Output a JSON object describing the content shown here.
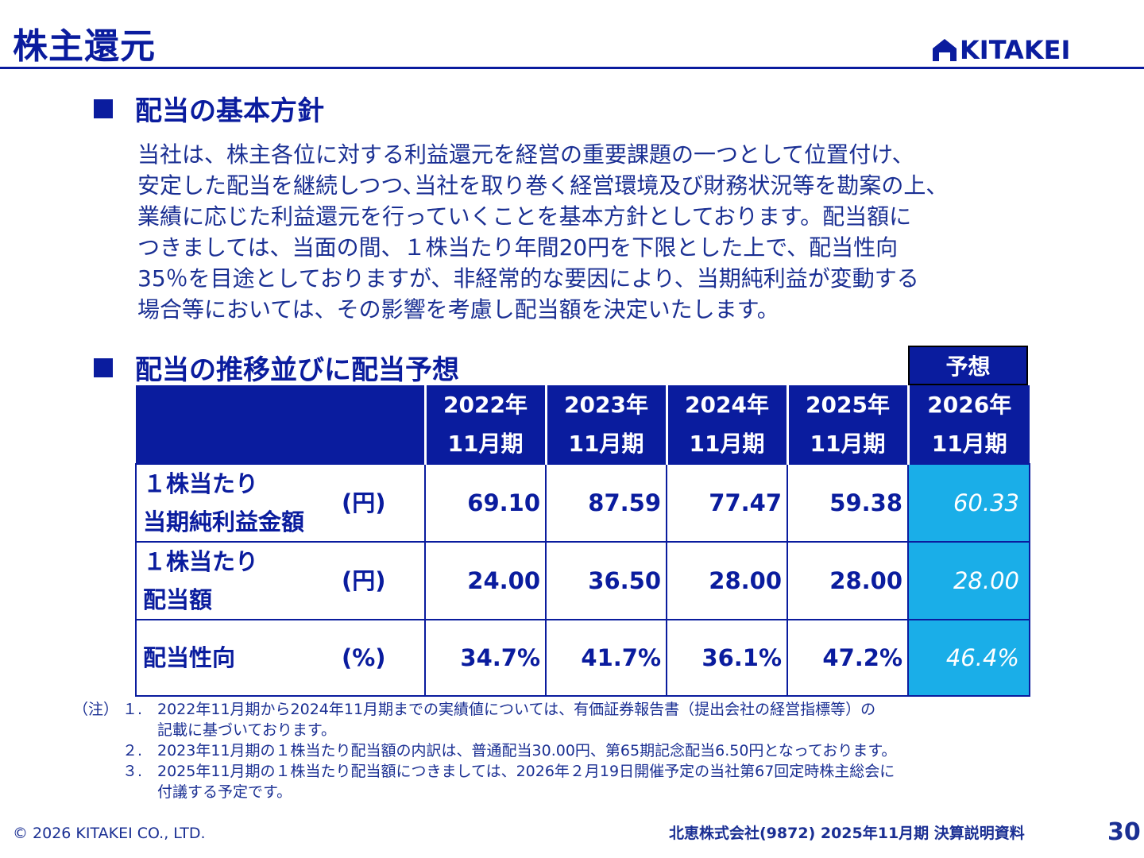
{
  "header": {
    "title": "株主還元",
    "logo_text": "KITAKEI"
  },
  "section1": {
    "heading": "配当の基本方針",
    "lines": [
      "当社は、株主各位に対する利益還元を経営の重要課題の一つとして位置付け、",
      "安定した配当を継続しつつ､当社を取り巻く経営環境及び財務状況等を勘案の上、",
      "業績に応じた利益還元を行っていくことを基本方針としております。配当額に",
      "つきましては、当面の間、１株当たり年間20円を下限とした上で、配当性向",
      "35％を目途としておりますが、非経常的な要因により、当期純利益が変動する",
      "場合等においては、その影響を考慮し配当額を決定いたします。"
    ]
  },
  "section2": {
    "heading": "配当の推移並びに配当予想",
    "forecast_label": "予想",
    "columns": [
      {
        "year": "2022年",
        "period": "11月期"
      },
      {
        "year": "2023年",
        "period": "11月期"
      },
      {
        "year": "2024年",
        "period": "11月期"
      },
      {
        "year": "2025年",
        "period": "11月期"
      },
      {
        "year": "2026年",
        "period": "11月期"
      }
    ],
    "rows": [
      {
        "label1": "１株当たり",
        "label2": "当期純利益金額",
        "unit": "(円)",
        "values": [
          "69.10",
          "87.59",
          "77.47",
          "59.38",
          "60.33"
        ]
      },
      {
        "label1": "１株当たり",
        "label2": "配当額",
        "unit": "(円)",
        "values": [
          "24.00",
          "36.50",
          "28.00",
          "28.00",
          "28.00"
        ]
      },
      {
        "label1": "配当性向",
        "label2": "",
        "unit": "(%)",
        "values": [
          "34.7%",
          "41.7%",
          "36.1%",
          "47.2%",
          "46.4%"
        ]
      }
    ]
  },
  "notes": {
    "prefix": "（注）",
    "items": [
      {
        "num": "１.",
        "line1": "2022年11月期から2024年11月期までの実績値については、有価証券報告書（提出会社の経営指標等）の",
        "line2": "記載に基づいております。"
      },
      {
        "num": "２.",
        "line1": "2023年11月期の１株当たり配当額の内訳は、普通配当30.00円、第65期記念配当6.50円となっております。",
        "line2": ""
      },
      {
        "num": "３.",
        "line1": "2025年11月期の１株当たり配当額につきましては、2026年２月19日開催予定の当社第67回定時株主総会に",
        "line2": "付議する予定です。"
      }
    ]
  },
  "footer": {
    "copyright": "© 2026 KITAKEI CO., LTD.",
    "doc_title": "北恵株式会社(9872) 2025年11月期 決算説明資料",
    "page_number": "30"
  }
}
